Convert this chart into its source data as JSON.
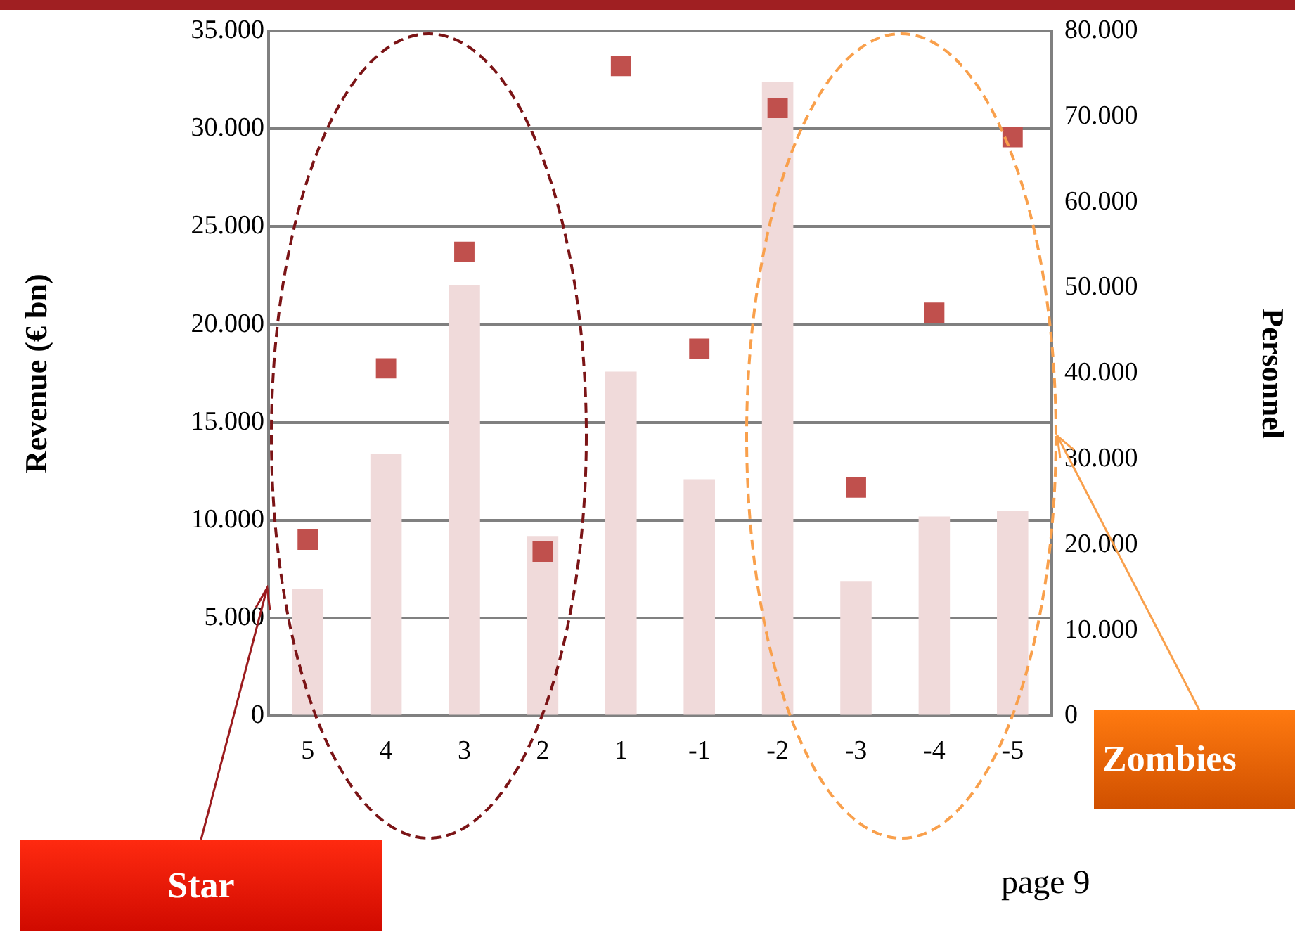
{
  "chart_data": {
    "type": "bar",
    "ylabel": "Revenue (€ bn)",
    "y2label": "Personnel",
    "categories": [
      "5",
      "4",
      "3",
      "2",
      "1",
      "-1",
      "-2",
      "-3",
      "-4",
      "-5"
    ],
    "series": [
      {
        "type": "bar",
        "color": "#f0dada",
        "values": [
          6500,
          13400,
          22000,
          9200,
          17600,
          12100,
          32400,
          6900,
          10200,
          10500
        ]
      },
      {
        "type": "scatter",
        "axis": "y2",
        "color": "#c0504d",
        "marker": "square",
        "values": [
          20600,
          40600,
          54200,
          19200,
          75900,
          42900,
          71000,
          26700,
          47100,
          67600
        ]
      }
    ],
    "ylim": [
      0,
      35000
    ],
    "yticks": [
      {
        "value": 0,
        "label": "0"
      },
      {
        "value": 5000,
        "label": "5.000"
      },
      {
        "value": 10000,
        "label": "10.000"
      },
      {
        "value": 15000,
        "label": "15.000"
      },
      {
        "value": 20000,
        "label": "20.000"
      },
      {
        "value": 25000,
        "label": "25.000"
      },
      {
        "value": 30000,
        "label": "30.000"
      },
      {
        "value": 35000,
        "label": "35.000"
      }
    ],
    "y2lim": [
      0,
      80000
    ],
    "y2ticks": [
      {
        "value": 0,
        "label": "0"
      },
      {
        "value": 10000,
        "label": "10.000"
      },
      {
        "value": 20000,
        "label": "20.000"
      },
      {
        "value": 30000,
        "label": "30.000"
      },
      {
        "value": 40000,
        "label": "40.000"
      },
      {
        "value": 50000,
        "label": "50.000"
      },
      {
        "value": 60000,
        "label": "60.000"
      },
      {
        "value": 70000,
        "label": "70.000"
      },
      {
        "value": 80000,
        "label": "80.000"
      }
    ],
    "grid": "y",
    "legend": false,
    "annotations": [
      "Star",
      "Zombies",
      "page 9"
    ]
  }
}
